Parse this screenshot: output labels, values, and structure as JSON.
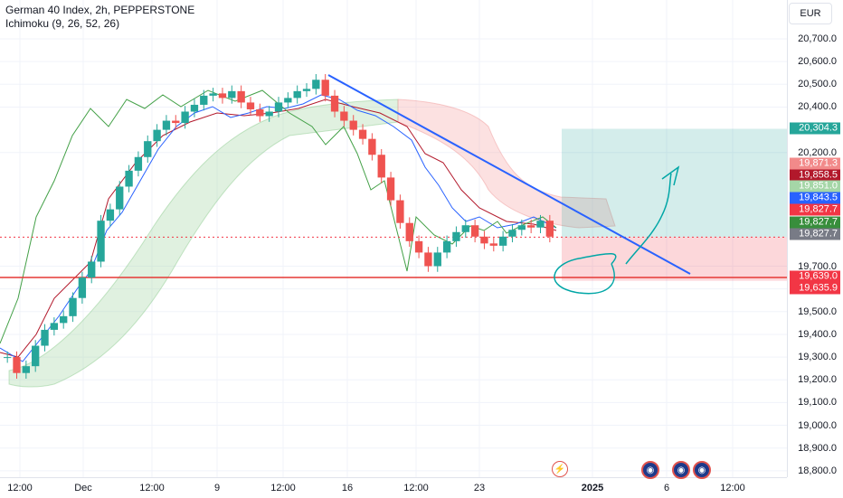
{
  "header": {
    "title": "German 40 Index, 2h, PEPPERSTONE",
    "indicator": "Ichimoku (9, 26, 52, 26)"
  },
  "currency_button": "EUR",
  "y_axis": {
    "ticks": [
      "20,700.0",
      "20,600.0",
      "20,500.0",
      "20,400.0",
      "20,200.0",
      "19,700.0",
      "19,600.0",
      "19,500.0",
      "19,400.0",
      "19,300.0",
      "19,200.0",
      "19,100.0",
      "19,000.0",
      "18,900.0",
      "18,800.0"
    ]
  },
  "price_labels": [
    {
      "text": "20,304.3",
      "color": "#26a69a"
    },
    {
      "text": "19,871.3",
      "color": "#f28a8a"
    },
    {
      "text": "19,858.5",
      "color": "#b2182b"
    },
    {
      "text": "19,851.0",
      "color": "#a5d6a7"
    },
    {
      "text": "19,843.5",
      "color": "#2962ff"
    },
    {
      "text": "19,827.7",
      "color": "#f23645"
    },
    {
      "text": "19,827.7",
      "color": "#388e3c"
    },
    {
      "text": "19,827.7",
      "color": "#787b86"
    },
    {
      "text": "19,639.0",
      "color": "#f23645"
    },
    {
      "text": "19,635.9",
      "color": "#f23645"
    }
  ],
  "x_axis": {
    "ticks": [
      {
        "label": "12:00",
        "bold": false
      },
      {
        "label": "Dec",
        "bold": false
      },
      {
        "label": "12:00",
        "bold": false
      },
      {
        "label": "9",
        "bold": false
      },
      {
        "label": "12:00",
        "bold": false
      },
      {
        "label": "16",
        "bold": false
      },
      {
        "label": "12:00",
        "bold": false
      },
      {
        "label": "23",
        "bold": false
      },
      {
        "label": "2025",
        "bold": true
      },
      {
        "label": "6",
        "bold": false
      },
      {
        "label": "12:00",
        "bold": false
      }
    ]
  },
  "events": {
    "flash_icon": "lightning-icon",
    "earnings_icon": "calendar-event-icon"
  },
  "chart_data": {
    "type": "candlestick",
    "symbol": "German 40 Index",
    "timeframe": "2h",
    "current_price": 19827.7,
    "support_level": 19639.0,
    "position": {
      "entry": 19827.7,
      "target": 20304.3,
      "stop": 19635.9
    },
    "ichimoku": {
      "tenkan": 19843.5,
      "kijun": 19858.5,
      "span_a": 19851.0,
      "span_b": 19871.3
    },
    "y_range": [
      18780,
      20770
    ],
    "approx_closes": [
      19300,
      19230,
      19260,
      19350,
      19420,
      19450,
      19480,
      19560,
      19650,
      19720,
      19900,
      19950,
      20050,
      20120,
      20180,
      20250,
      20300,
      20340,
      20330,
      20380,
      20410,
      20450,
      20460,
      20440,
      20470,
      20420,
      20390,
      20360,
      20380,
      20420,
      20440,
      20470,
      20480,
      20520,
      20450,
      20380,
      20340,
      20300,
      20260,
      20190,
      20090,
      19990,
      19890,
      19810,
      19760,
      19700,
      19760,
      19810,
      19850,
      19880,
      19830,
      19800,
      19790,
      19830,
      19860,
      19880,
      19870,
      19900,
      19830
    ]
  }
}
